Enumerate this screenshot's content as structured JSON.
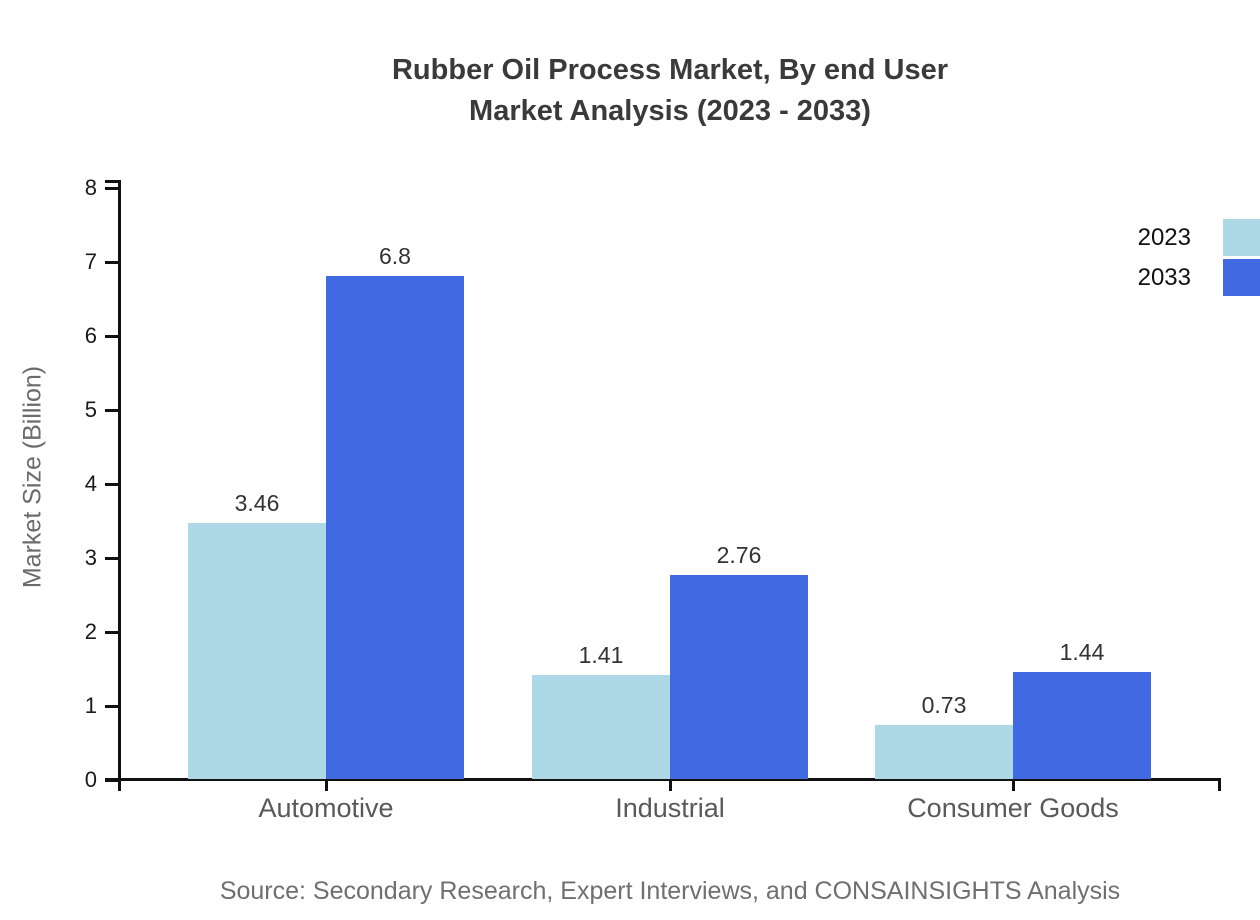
{
  "title": {
    "line1": "Rubber Oil Process Market, By end User",
    "line2": "Market Analysis (2023 - 2033)"
  },
  "source_note": "Source: Secondary Research, Expert Interviews, and CONSAINSIGHTS Analysis",
  "colors": {
    "series_2023": "#ADD8E6",
    "series_2033": "#4169E1",
    "axis": "#111111"
  },
  "chart_data": {
    "type": "bar",
    "title": "Rubber Oil Process Market, By end User Market Analysis (2023 - 2033)",
    "categories": [
      "Automotive",
      "Industrial",
      "Consumer Goods"
    ],
    "series": [
      {
        "name": "2023",
        "color": "#ADD8E6",
        "values": [
          3.46,
          1.41,
          0.73
        ]
      },
      {
        "name": "2033",
        "color": "#4169E1",
        "values": [
          6.8,
          2.76,
          1.44
        ]
      }
    ],
    "xlabel": "",
    "ylabel": "Market Size (Billion)",
    "ylim": [
      0,
      8
    ],
    "yticks": [
      0,
      1,
      2,
      3,
      4,
      5,
      6,
      7,
      8
    ],
    "grid": false,
    "bar_value_labels_shown": true,
    "legend_position": "right-top",
    "legend": [
      "2023",
      "2033"
    ]
  }
}
